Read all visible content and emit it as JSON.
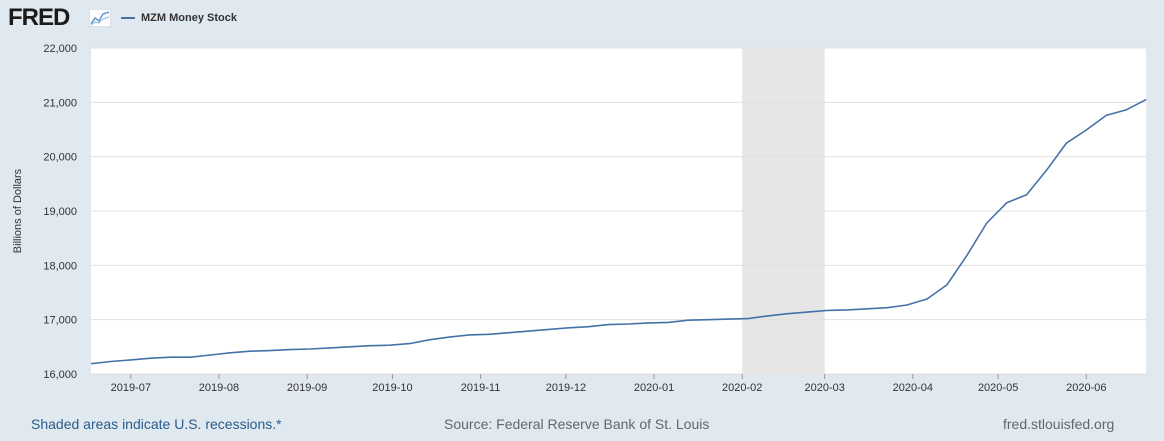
{
  "header": {
    "logo_text": "FRED",
    "legend_label": "MZM Money Stock",
    "series_color": "#4572a7"
  },
  "chart_data": {
    "type": "line",
    "title": "",
    "xlabel": "",
    "ylabel": "Billions of Dollars",
    "ylim": [
      16000,
      22000
    ],
    "y_ticks": [
      16000,
      17000,
      18000,
      19000,
      20000,
      21000,
      22000
    ],
    "y_tick_labels": [
      "16,000",
      "17,000",
      "18,000",
      "19,000",
      "20,000",
      "21,000",
      "22,000"
    ],
    "x_range": [
      "2019-06-17",
      "2020-06-22"
    ],
    "x_ticks": [
      "2019-07-01",
      "2019-08-01",
      "2019-09-01",
      "2019-10-01",
      "2019-11-01",
      "2019-12-01",
      "2020-01-01",
      "2020-02-01",
      "2020-03-01",
      "2020-04-01",
      "2020-05-01",
      "2020-06-01"
    ],
    "x_tick_labels": [
      "2019-07",
      "2019-08",
      "2019-09",
      "2019-10",
      "2019-11",
      "2019-12",
      "2020-01",
      "2020-02",
      "2020-03",
      "2020-04",
      "2020-05",
      "2020-06"
    ],
    "grid": true,
    "legend_position": "top-left",
    "recession": {
      "start": "2020-02-01",
      "end": "2020-03-01"
    },
    "series": [
      {
        "name": "MZM Money Stock",
        "color": "#4572a7",
        "x": [
          "2019-06-17",
          "2019-06-24",
          "2019-07-01",
          "2019-07-08",
          "2019-07-15",
          "2019-07-22",
          "2019-07-29",
          "2019-08-05",
          "2019-08-12",
          "2019-08-19",
          "2019-08-26",
          "2019-09-02",
          "2019-09-09",
          "2019-09-16",
          "2019-09-23",
          "2019-09-30",
          "2019-10-07",
          "2019-10-14",
          "2019-10-21",
          "2019-10-28",
          "2019-11-04",
          "2019-11-11",
          "2019-11-18",
          "2019-11-25",
          "2019-12-02",
          "2019-12-09",
          "2019-12-16",
          "2019-12-23",
          "2019-12-30",
          "2020-01-06",
          "2020-01-13",
          "2020-01-20",
          "2020-01-27",
          "2020-02-03",
          "2020-02-10",
          "2020-02-17",
          "2020-02-24",
          "2020-03-02",
          "2020-03-09",
          "2020-03-16",
          "2020-03-23",
          "2020-03-30",
          "2020-04-06",
          "2020-04-13",
          "2020-04-20",
          "2020-04-27",
          "2020-05-04",
          "2020-05-11",
          "2020-05-18",
          "2020-05-25",
          "2020-06-01",
          "2020-06-08",
          "2020-06-15",
          "2020-06-22"
        ],
        "y": [
          16190,
          16230,
          16260,
          16290,
          16310,
          16310,
          16350,
          16390,
          16420,
          16430,
          16450,
          16460,
          16480,
          16500,
          16520,
          16530,
          16560,
          16630,
          16680,
          16720,
          16730,
          16760,
          16790,
          16820,
          16850,
          16870,
          16910,
          16920,
          16940,
          16950,
          16990,
          17000,
          17010,
          17020,
          17070,
          17110,
          17140,
          17170,
          17180,
          17200,
          17220,
          17270,
          17380,
          17640,
          18180,
          18780,
          19150,
          19300,
          19750,
          20250,
          20490,
          20760,
          20860,
          21050
        ]
      }
    ]
  },
  "footer": {
    "recession_note": "Shaded areas indicate U.S. recessions.*",
    "source": "Source: Federal Reserve Bank of St. Louis",
    "url": "fred.stlouisfed.org"
  }
}
